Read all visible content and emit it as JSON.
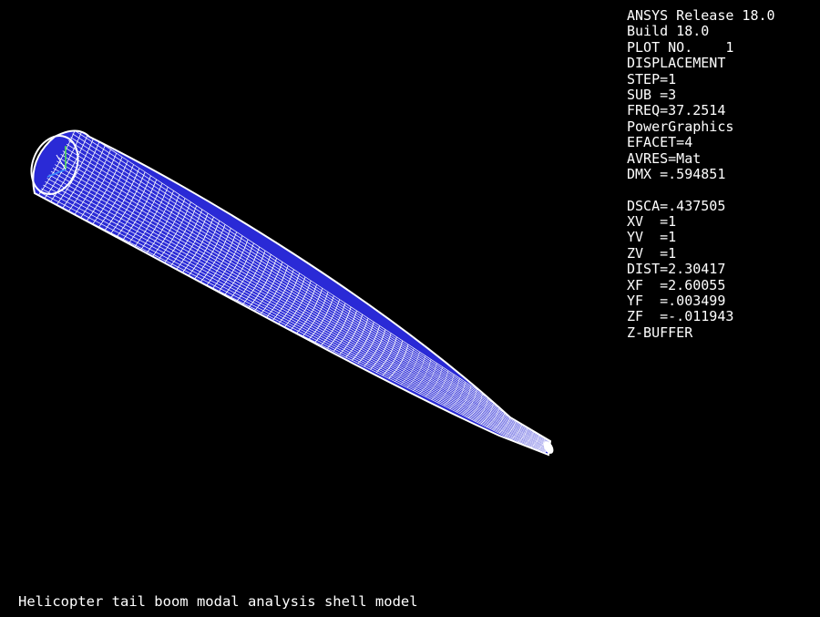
{
  "legend": {
    "lines_group1": [
      "ANSYS Release 18.0",
      "Build 18.0",
      "PLOT NO.    1",
      "DISPLACEMENT",
      "STEP=1",
      "SUB =3",
      "FREQ=37.2514",
      "PowerGraphics",
      "EFACET=4",
      "AVRES=Mat",
      "DMX =.594851"
    ],
    "lines_group2": [
      "DSCA=.437505",
      "XV  =1",
      "YV  =1",
      "ZV  =1",
      "DIST=2.30417",
      "XF  =2.60055",
      "YF  =.003499",
      "ZF  =-.011943",
      "Z-BUFFER"
    ]
  },
  "caption": "Helicopter tail boom modal analysis shell model",
  "colors": {
    "background": "#000000",
    "mesh_fill": "#2a2ad6",
    "mesh_lines": "#ffffff",
    "axis_x": "#3a8cff",
    "axis_y": "#4ce04c",
    "axis_z": "#ffffff"
  },
  "icons": {
    "triad": "coordinate-triad-icon"
  }
}
